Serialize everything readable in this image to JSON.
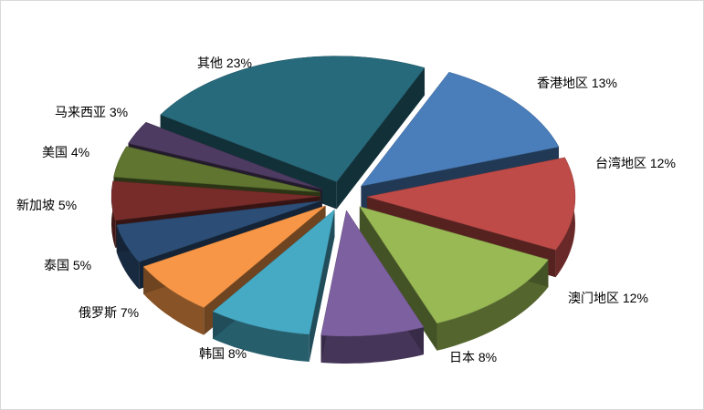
{
  "chart_data": {
    "type": "pie",
    "style": "exploded-3d",
    "slices": [
      {
        "label": "香港地区 13%",
        "value": 13,
        "color": "#4a7ebb"
      },
      {
        "label": "台湾地区 12%",
        "value": 12,
        "color": "#be4b48"
      },
      {
        "label": "澳门地区 12%",
        "value": 12,
        "color": "#98b954"
      },
      {
        "label": "日本 8%",
        "value": 8,
        "color": "#7d60a0"
      },
      {
        "label": "韩国 8%",
        "value": 8,
        "color": "#46aac5"
      },
      {
        "label": "俄罗斯 7%",
        "value": 7,
        "color": "#f79646"
      },
      {
        "label": "泰国 5%",
        "value": 5,
        "color": "#2c4d75"
      },
      {
        "label": "新加坡 5%",
        "value": 5,
        "color": "#772c2a"
      },
      {
        "label": "美国 4%",
        "value": 4,
        "color": "#5f7530"
      },
      {
        "label": "马来西亚 3%",
        "value": 3,
        "color": "#4d3b62"
      },
      {
        "label": "其他 23%",
        "value": 23,
        "color": "#276a7c"
      }
    ]
  }
}
